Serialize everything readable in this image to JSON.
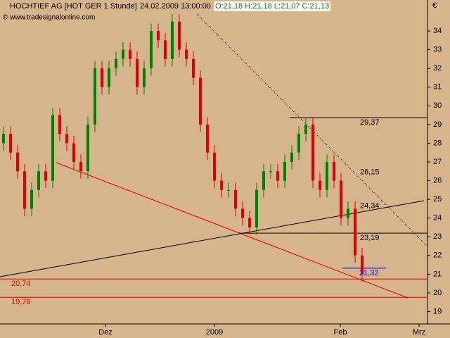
{
  "chart_data": {
    "type": "candlestick",
    "title": "HOCHTIEF AG [HOT GER  1 Stunde]",
    "datetime": "24.02.2009 13:00:00 -",
    "ohlc_text": "O:21,18 H:21,18 L:21,07 C:21,13",
    "subtitle": "© www.tradesignalonline.com",
    "currency": "€",
    "x": [
      0,
      2,
      4,
      6,
      8,
      10,
      12,
      14,
      16,
      18,
      20,
      22,
      24,
      26,
      28,
      30,
      32,
      34,
      36,
      38,
      40,
      42,
      44,
      46,
      48,
      50,
      52,
      54,
      56,
      58,
      60,
      62,
      64,
      66,
      68,
      70,
      72,
      74,
      76,
      78,
      80,
      82,
      84,
      86,
      88,
      90,
      92,
      94,
      96,
      98,
      100,
      102
    ],
    "open": [
      28.0,
      28.5,
      27.5,
      26.5,
      24.5,
      25.5,
      26.5,
      26.0,
      29.5,
      28.5,
      28.0,
      27.0,
      26.5,
      29.0,
      32.0,
      31.0,
      32.0,
      32.5,
      33.0,
      32.5,
      31.0,
      32.0,
      34.0,
      33.5,
      32.5,
      34.5,
      33.0,
      32.5,
      31.5,
      29.0,
      27.5,
      26.0,
      25.5,
      25.5,
      24.5,
      24.0,
      23.5,
      25.5,
      26.5,
      26.5,
      26.0,
      27.0,
      27.5,
      28.5,
      29.0,
      26.0,
      25.5,
      27.0,
      26.0,
      24.0,
      24.5,
      22.0
    ],
    "high": [
      28.9,
      28.9,
      27.9,
      26.9,
      25.9,
      26.9,
      26.9,
      29.9,
      29.9,
      28.9,
      28.4,
      27.4,
      29.4,
      32.4,
      32.4,
      32.4,
      32.9,
      33.4,
      33.4,
      32.9,
      32.4,
      34.4,
      34.4,
      33.9,
      34.9,
      34.9,
      33.4,
      32.9,
      31.9,
      29.4,
      27.9,
      26.4,
      25.9,
      25.9,
      24.9,
      24.4,
      25.9,
      26.9,
      26.9,
      26.9,
      27.4,
      27.9,
      28.9,
      29.4,
      29.4,
      26.4,
      27.4,
      27.4,
      26.4,
      24.9,
      24.9,
      22.4
    ],
    "low": [
      27.6,
      27.1,
      26.1,
      24.1,
      24.1,
      25.1,
      25.6,
      25.6,
      28.1,
      27.6,
      26.6,
      26.1,
      26.1,
      28.6,
      30.6,
      30.6,
      31.6,
      32.1,
      32.1,
      30.6,
      30.6,
      31.6,
      33.1,
      32.1,
      32.1,
      32.6,
      32.1,
      31.1,
      28.6,
      27.1,
      25.6,
      25.1,
      25.1,
      24.1,
      23.6,
      23.1,
      23.1,
      25.1,
      26.1,
      25.6,
      25.6,
      26.6,
      27.1,
      28.1,
      25.6,
      25.1,
      25.1,
      25.6,
      23.6,
      23.6,
      21.6,
      20.6
    ],
    "close": [
      28.5,
      27.5,
      26.5,
      24.5,
      25.5,
      26.5,
      26.0,
      29.5,
      28.5,
      28.0,
      27.0,
      26.5,
      29.0,
      32.0,
      31.0,
      32.0,
      32.5,
      33.0,
      32.5,
      31.0,
      32.0,
      34.0,
      33.5,
      32.5,
      34.5,
      33.0,
      32.5,
      31.5,
      29.0,
      27.5,
      26.0,
      25.5,
      25.5,
      24.5,
      24.0,
      23.5,
      25.5,
      26.5,
      26.5,
      26.0,
      27.0,
      27.5,
      28.5,
      29.0,
      26.0,
      25.5,
      27.0,
      26.0,
      24.0,
      24.5,
      22.0,
      21.0
    ],
    "up_color": "#008000",
    "down_color": "#e00000",
    "levels": [
      {
        "value": 29.37,
        "label": "29,37",
        "color": "#000000"
      },
      {
        "value": 26.15,
        "label": "26,15",
        "color": "#000000"
      },
      {
        "value": 24.34,
        "label": "24,34",
        "color": "#000000"
      },
      {
        "value": 23.19,
        "label": "23,19",
        "color": "#000000"
      },
      {
        "value": 21.32,
        "label": "21,32",
        "color": "#0000ff"
      },
      {
        "value": 20.74,
        "label": "20,74",
        "color": "#e00000"
      },
      {
        "value": 19.76,
        "label": "19,76",
        "color": "#e00000"
      }
    ],
    "xlim": [
      -1,
      120.6
    ],
    "ylim": [
      18.34,
      34.98
    ],
    "xticks": [
      {
        "value": 29,
        "label": "Dez"
      },
      {
        "value": 60,
        "label": "2009"
      },
      {
        "value": 95.8,
        "label": "Feb"
      },
      {
        "value": 118.2,
        "label": "Mrz"
      }
    ],
    "yticks": [
      19,
      20,
      21,
      22,
      23,
      24,
      25,
      26,
      27,
      28,
      29,
      30,
      31,
      32,
      33,
      34
    ]
  }
}
